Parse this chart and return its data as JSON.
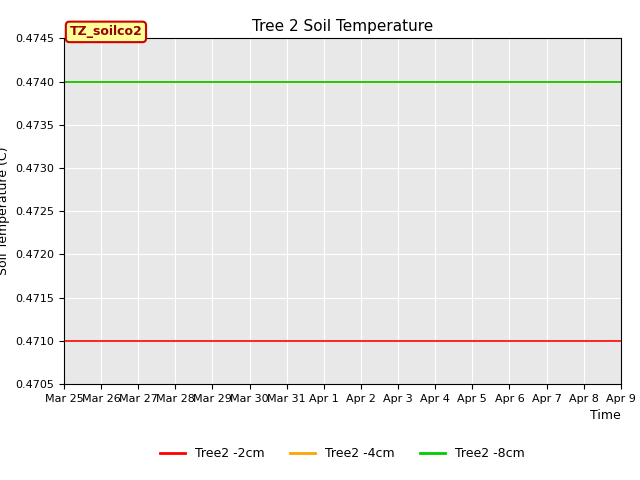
{
  "title": "Tree 2 Soil Temperature",
  "xlabel": "Time",
  "ylabel": "Soil Temperature (C)",
  "ylim": [
    0.4705,
    0.4745
  ],
  "yticks": [
    0.4705,
    0.471,
    0.4715,
    0.472,
    0.4725,
    0.473,
    0.4735,
    0.474,
    0.4745
  ],
  "series": [
    {
      "label": "Tree2 -2cm",
      "value": 0.471,
      "color": "#ff0000"
    },
    {
      "label": "Tree2 -4cm",
      "value": 0.474,
      "color": "#ffa500"
    },
    {
      "label": "Tree2 -8cm",
      "value": 0.474,
      "color": "#00cc00"
    }
  ],
  "annotation_box_text": "TZ_soilco2",
  "annotation_box_facecolor": "#ffff99",
  "annotation_box_edgecolor": "#cc0000",
  "x_tick_labels": [
    "Mar 25",
    "Mar 26",
    "Mar 27",
    "Mar 28",
    "Mar 29",
    "Mar 30",
    "Mar 31",
    "Apr 1",
    "Apr 2",
    "Apr 3",
    "Apr 4",
    "Apr 5",
    "Apr 6",
    "Apr 7",
    "Apr 8",
    "Apr 9"
  ],
  "num_days": 15,
  "background_color": "#e8e8e8",
  "grid_color": "#ffffff",
  "title_fontsize": 11,
  "axis_label_fontsize": 9,
  "tick_fontsize": 8,
  "legend_fontsize": 9
}
